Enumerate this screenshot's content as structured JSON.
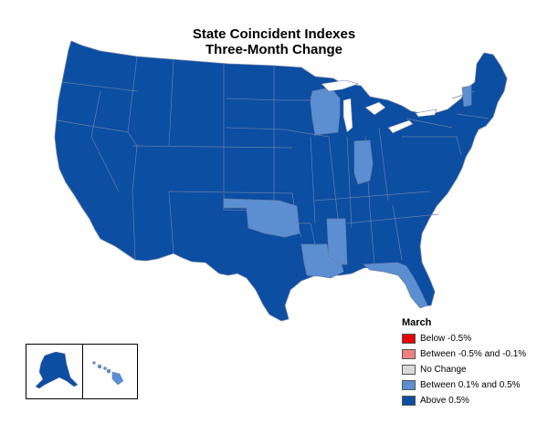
{
  "title": "State Coincident Indexes",
  "subtitle": "Three-Month Change",
  "legend": {
    "title": "March",
    "items": [
      {
        "label": "Below -0.5%",
        "color": "#e60000"
      },
      {
        "label": "Between -0.5% and -0.1%",
        "color": "#f08080"
      },
      {
        "label": "No Change",
        "color": "#d9d9d9"
      },
      {
        "label": "Between 0.1% and 0.5%",
        "color": "#5b8fd1"
      },
      {
        "label": "Above 0.5%",
        "color": "#0b4ea2"
      }
    ]
  },
  "colors": {
    "above": "#0b4ea2",
    "between_pos": "#5b8fd1",
    "border": "#6a7fa8"
  },
  "states_between_0.1_and_0.5": [
    "WI",
    "IN",
    "OK",
    "LA",
    "MS",
    "FL",
    "VT",
    "HI"
  ],
  "states_above_0.5": "all others"
}
